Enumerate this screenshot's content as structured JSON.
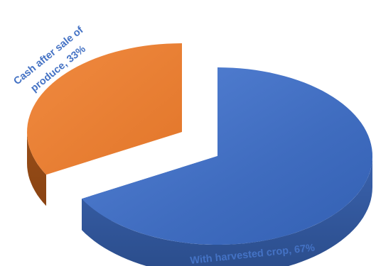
{
  "chart_data": {
    "type": "pie",
    "style": "3d-exploded",
    "title": "",
    "slices": [
      {
        "label": "With harvested crop",
        "value": 67,
        "data_label": "With harvested crop, 67%",
        "color": "#4472c4",
        "shade_color": "#2f528f"
      },
      {
        "label": "Cash after sale of produce",
        "value": 33,
        "data_label_line1": "Cash after sale of",
        "data_label_line2": "produce, 33%",
        "color": "#ed7d31",
        "shade_color": "#9e4f17"
      }
    ],
    "label_color": "#4472c4",
    "legend": "none"
  }
}
